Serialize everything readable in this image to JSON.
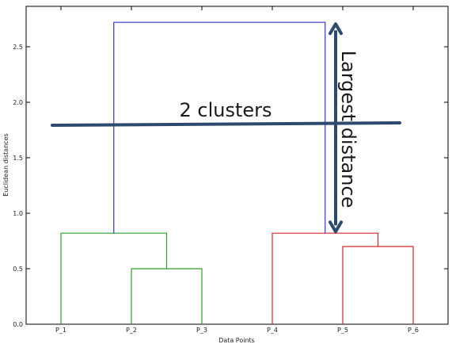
{
  "chart_data": {
    "type": "dendrogram",
    "xlabel": "Data Points",
    "ylabel": "Euclidean distances",
    "ylim": [
      0,
      2.85
    ],
    "yticks": [
      0.0,
      0.5,
      1.0,
      1.5,
      2.0,
      2.5
    ],
    "ytick_labels": [
      "0.0",
      "0.5",
      "1.0",
      "1.5",
      "2.0",
      "2.5"
    ],
    "leaves": [
      "P_1",
      "P_2",
      "P_3",
      "P_4",
      "P_5",
      "P_6"
    ],
    "links": [
      {
        "left": "P_2",
        "right": "P_3",
        "height": 0.5,
        "color": "#2ca02c"
      },
      {
        "left": "P_5",
        "right": "P_6",
        "height": 0.7,
        "color": "#d62728"
      },
      {
        "left": "P_1",
        "right": "P_2+P_3",
        "height": 0.82,
        "color": "#2ca02c"
      },
      {
        "left": "P_4",
        "right": "P_5+P_6",
        "height": 0.82,
        "color": "#d62728"
      },
      {
        "left": "P_1+P_2+P_3",
        "right": "P_4+P_5+P_6",
        "height": 2.72,
        "color": "#3333cc"
      }
    ],
    "annotations": {
      "cut_label": "2 clusters",
      "cut_height": 1.8,
      "cut_color": "#2c4a6e",
      "arrow_label": "Largest distance",
      "arrow_from": 0.82,
      "arrow_to": 2.72,
      "arrow_color": "#2c4a6e"
    },
    "grid": false
  }
}
